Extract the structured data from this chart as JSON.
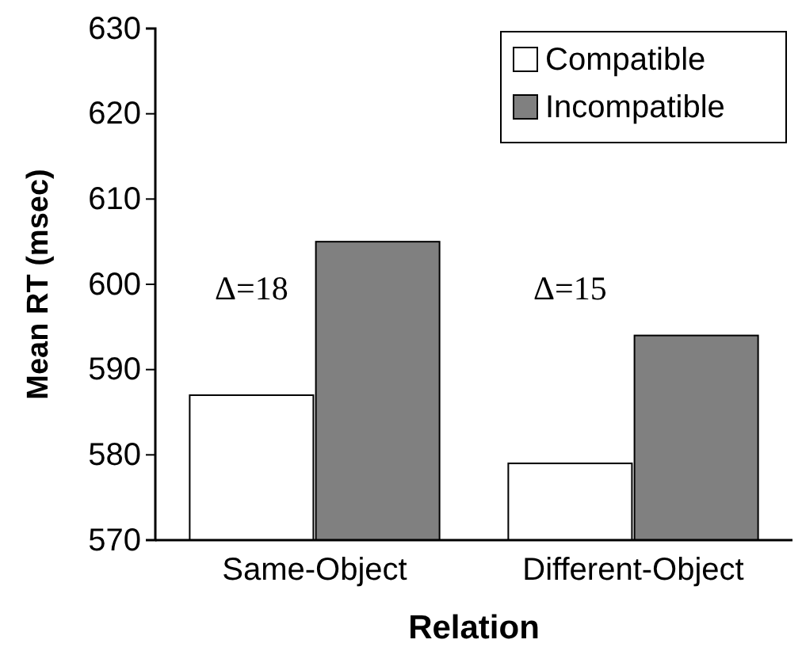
{
  "chart_data": {
    "type": "bar",
    "xlabel": "Relation",
    "ylabel": "Mean RT (msec)",
    "categories": [
      "Same-Object",
      "Different-Object"
    ],
    "series": [
      {
        "name": "Compatible",
        "color": "#ffffff",
        "values": [
          587,
          579
        ]
      },
      {
        "name": "Incompatible",
        "color": "#808080",
        "values": [
          605,
          594
        ]
      }
    ],
    "ylim": [
      570,
      630
    ],
    "yticks": [
      570,
      580,
      590,
      600,
      610,
      620,
      630
    ],
    "grid": false,
    "legend": "top right",
    "annotations": [
      "Δ=18",
      "Δ=15"
    ]
  }
}
